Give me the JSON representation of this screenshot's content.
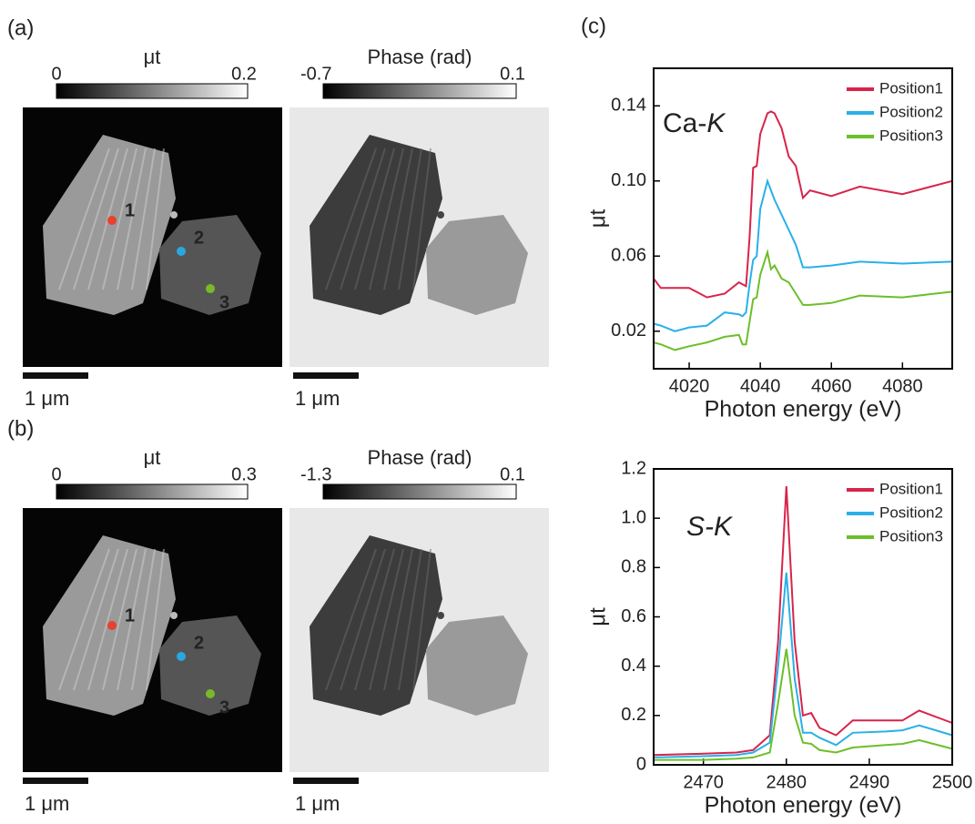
{
  "panels": [
    {
      "label": "(a)",
      "images": [
        {
          "colorbar": {
            "label": "μt",
            "min": 0,
            "max": 0.2
          },
          "scalebar": "1 μm",
          "markers": [
            {
              "label": "1",
              "color": "#e8412c"
            },
            {
              "label": "2",
              "color": "#29a8e0"
            },
            {
              "label": "3",
              "color": "#7ab929"
            }
          ]
        },
        {
          "colorbar": {
            "label": "Phase (rad)",
            "min": -0.7,
            "max": 0.1
          },
          "scalebar": "1 μm"
        }
      ]
    },
    {
      "label": "(b)",
      "images": [
        {
          "colorbar": {
            "label": "μt",
            "min": 0,
            "max": 0.3
          },
          "scalebar": "1 μm",
          "markers": [
            {
              "label": "1",
              "color": "#e8412c"
            },
            {
              "label": "2",
              "color": "#29a8e0"
            },
            {
              "label": "3",
              "color": "#7ab929"
            }
          ]
        },
        {
          "colorbar": {
            "label": "Phase (rad)",
            "min": -1.3,
            "max": 0.1
          },
          "scalebar": "1 μm"
        }
      ]
    }
  ],
  "chart_data": [
    {
      "type": "line",
      "panel_label": "(c)",
      "annotation": [
        {
          "text": "Ca-",
          "italic": false
        },
        {
          "text": "K",
          "italic": true
        }
      ],
      "xlabel": "Photon energy (eV)",
      "ylabel": "μt",
      "x": [
        4010,
        4012,
        4016,
        4020,
        4025,
        4030,
        4034,
        4035,
        4036,
        4037,
        4038,
        4039,
        4040,
        4042,
        4043,
        4044,
        4046,
        4048,
        4050,
        4052,
        4054,
        4060,
        4068,
        4080,
        4094
      ],
      "series": [
        {
          "name": "Position1",
          "color": "#d8244a",
          "values": [
            0.048,
            0.043,
            0.043,
            0.043,
            0.038,
            0.04,
            0.046,
            0.045,
            0.044,
            0.07,
            0.107,
            0.108,
            0.125,
            0.136,
            0.137,
            0.136,
            0.128,
            0.113,
            0.108,
            0.091,
            0.095,
            0.092,
            0.097,
            0.093,
            0.1
          ]
        },
        {
          "name": "Position2",
          "color": "#2ab0e8",
          "values": [
            0.024,
            0.023,
            0.02,
            0.022,
            0.023,
            0.03,
            0.029,
            0.028,
            0.03,
            0.045,
            0.058,
            0.06,
            0.085,
            0.1,
            0.095,
            0.09,
            0.082,
            0.074,
            0.066,
            0.054,
            0.054,
            0.055,
            0.057,
            0.056,
            0.057
          ]
        },
        {
          "name": "Position3",
          "color": "#6cbf2a",
          "values": [
            0.014,
            0.013,
            0.01,
            0.012,
            0.014,
            0.017,
            0.018,
            0.013,
            0.013,
            0.025,
            0.037,
            0.038,
            0.05,
            0.062,
            0.053,
            0.055,
            0.048,
            0.046,
            0.04,
            0.034,
            0.034,
            0.035,
            0.039,
            0.038,
            0.041
          ]
        }
      ],
      "xlim": [
        4010,
        4094
      ],
      "xticks": [
        4020,
        4040,
        4060,
        4080
      ],
      "ylim": [
        0,
        0.16
      ],
      "yticks": [
        {
          "value": 0.02,
          "label": "0.02"
        },
        {
          "value": 0.06,
          "label": "0.06"
        },
        {
          "value": 0.1,
          "label": "0.10"
        },
        {
          "value": 0.14,
          "label": "0.14"
        }
      ],
      "legend": "upper right"
    },
    {
      "type": "line",
      "annotation": [
        {
          "text": "S-",
          "italic": true
        },
        {
          "text": "K",
          "italic": true
        }
      ],
      "xlabel": "Photon energy (eV)",
      "ylabel": "μt",
      "x": [
        2464,
        2470,
        2474,
        2476,
        2478,
        2479,
        2480,
        2481,
        2482,
        2483,
        2484,
        2486,
        2488,
        2492,
        2494,
        2496,
        2500
      ],
      "series": [
        {
          "name": "Position1",
          "color": "#d8244a",
          "values": [
            0.04,
            0.045,
            0.05,
            0.06,
            0.12,
            0.5,
            1.13,
            0.5,
            0.2,
            0.21,
            0.15,
            0.12,
            0.18,
            0.18,
            0.18,
            0.22,
            0.17
          ]
        },
        {
          "name": "Position2",
          "color": "#2ab0e8",
          "values": [
            0.03,
            0.035,
            0.04,
            0.05,
            0.09,
            0.4,
            0.78,
            0.35,
            0.13,
            0.13,
            0.11,
            0.08,
            0.13,
            0.135,
            0.14,
            0.16,
            0.12
          ]
        },
        {
          "name": "Position3",
          "color": "#6cbf2a",
          "values": [
            0.02,
            0.02,
            0.025,
            0.03,
            0.05,
            0.25,
            0.47,
            0.2,
            0.09,
            0.085,
            0.06,
            0.05,
            0.07,
            0.08,
            0.085,
            0.1,
            0.065
          ]
        }
      ],
      "xlim": [
        2464,
        2500
      ],
      "xticks": [
        2470,
        2480,
        2490,
        2500
      ],
      "ylim": [
        0,
        1.2
      ],
      "yticks": [
        0,
        0.2,
        0.4,
        0.6,
        0.8,
        {
          "value": 1,
          "label": "1.0"
        },
        1.2
      ],
      "legend": "upper right"
    }
  ]
}
